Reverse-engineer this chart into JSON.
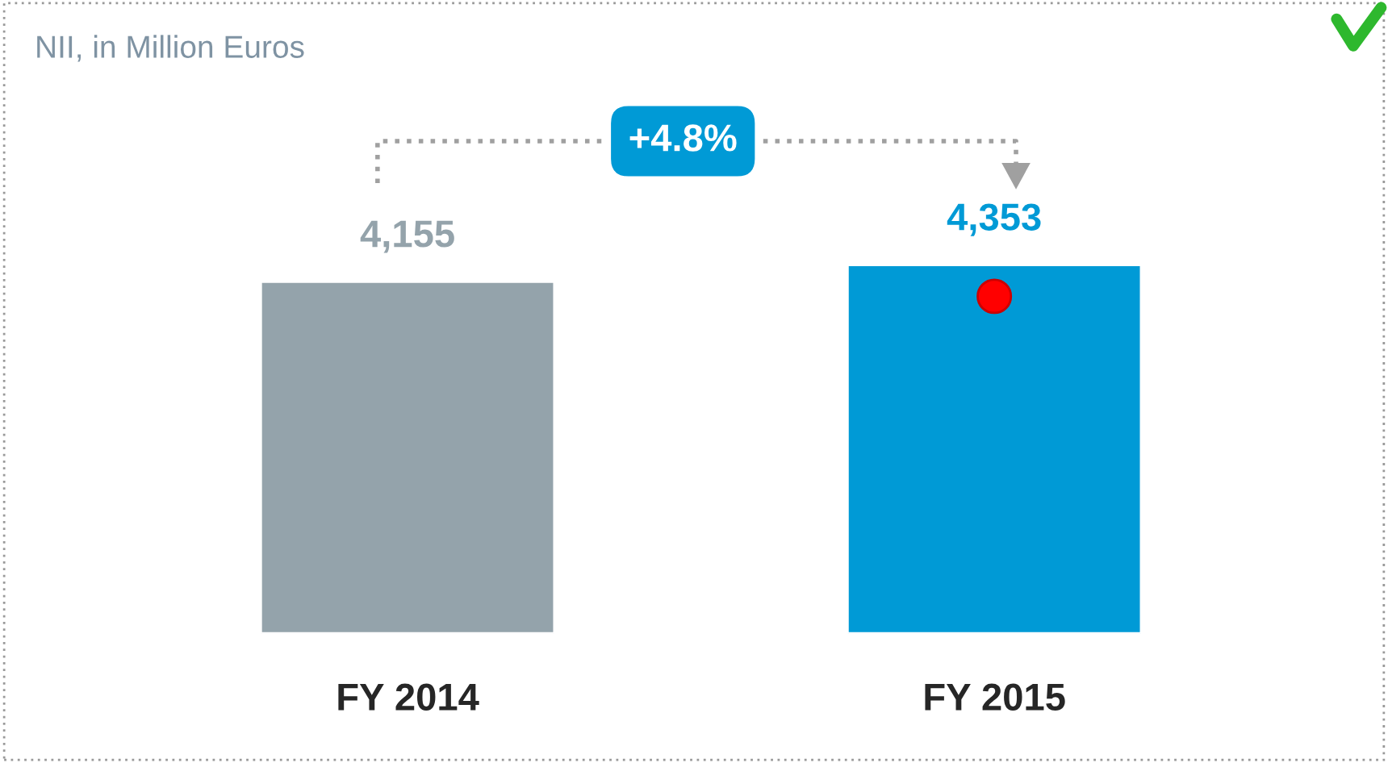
{
  "chart_data": {
    "type": "bar",
    "title": "NII, in Million Euros",
    "categories": [
      "FY 2014",
      "FY 2015"
    ],
    "values": [
      4155,
      4353
    ],
    "colors": [
      "#94a3ab",
      "#009ad6"
    ],
    "value_labels": [
      "4,155",
      "4,353"
    ],
    "tick_labels": "x",
    "grid": false,
    "legend": false,
    "annotations": [
      "+4.8%"
    ]
  }
}
